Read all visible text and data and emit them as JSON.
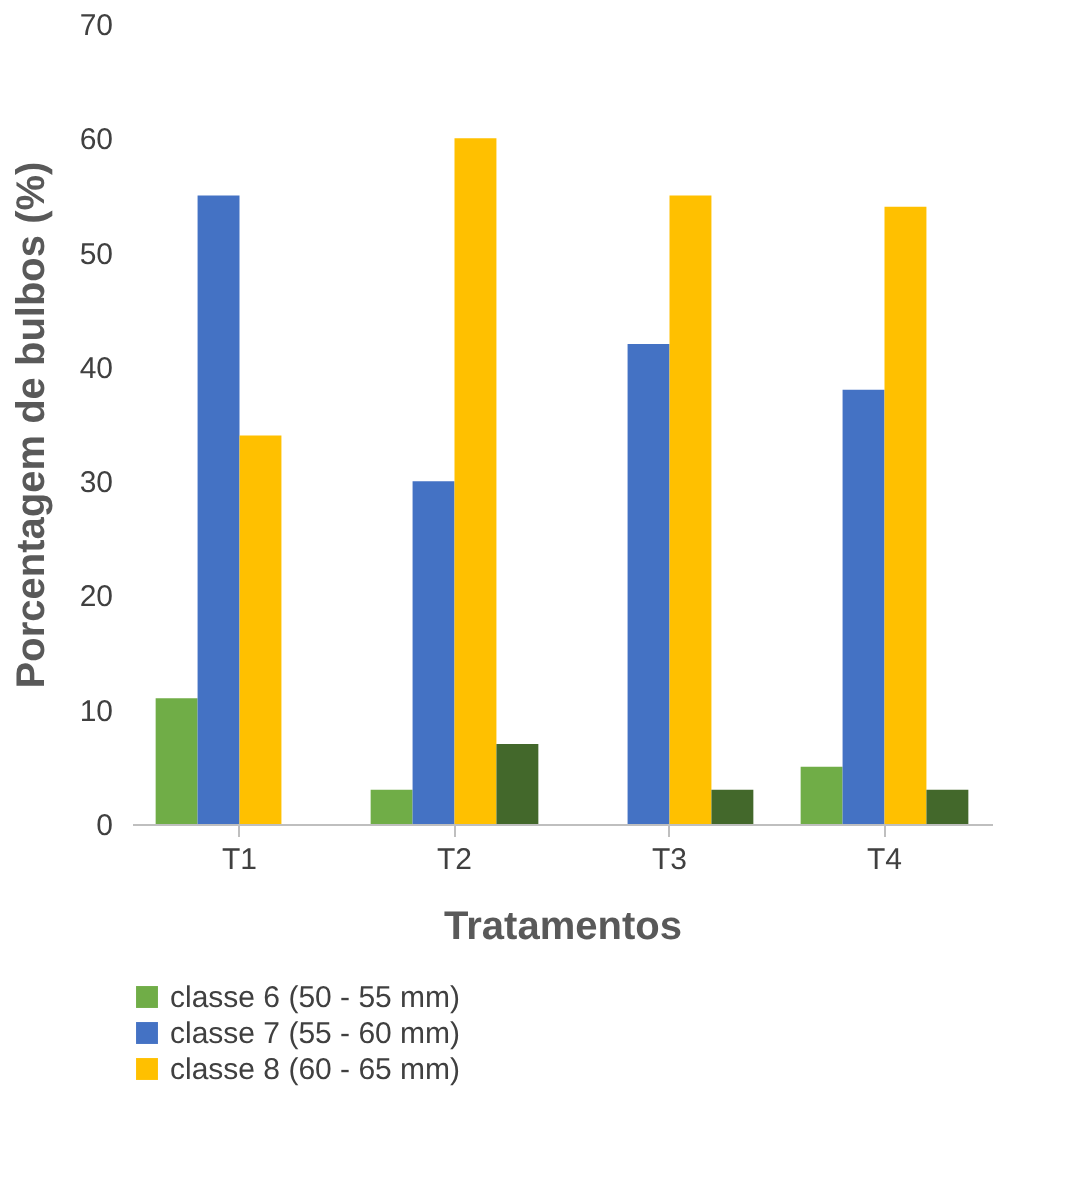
{
  "chart_data": {
    "type": "bar",
    "xlabel": "Tratamentos",
    "ylabel": "Porcentagem de bulbos (%)",
    "categories": [
      "T1",
      "T2",
      "T3",
      "T4"
    ],
    "series": [
      {
        "name": "classe 6 (50 - 55 mm)",
        "color": "#70ad47",
        "values": [
          11,
          3,
          0,
          5
        ]
      },
      {
        "name": "classe 7 (55 - 60 mm)",
        "color": "#4472c4",
        "values": [
          55,
          30,
          42,
          38
        ]
      },
      {
        "name": "classe 8 (60 - 65 mm)",
        "color": "#ffc000",
        "values": [
          34,
          60,
          55,
          54
        ]
      },
      {
        "color": "#43682b",
        "values": [
          0,
          7,
          3,
          3
        ]
      }
    ],
    "ylim": [
      0,
      70
    ],
    "yticks": [
      0,
      10,
      20,
      30,
      40,
      50,
      60,
      70
    ],
    "grid": false,
    "legend": "bottom"
  }
}
